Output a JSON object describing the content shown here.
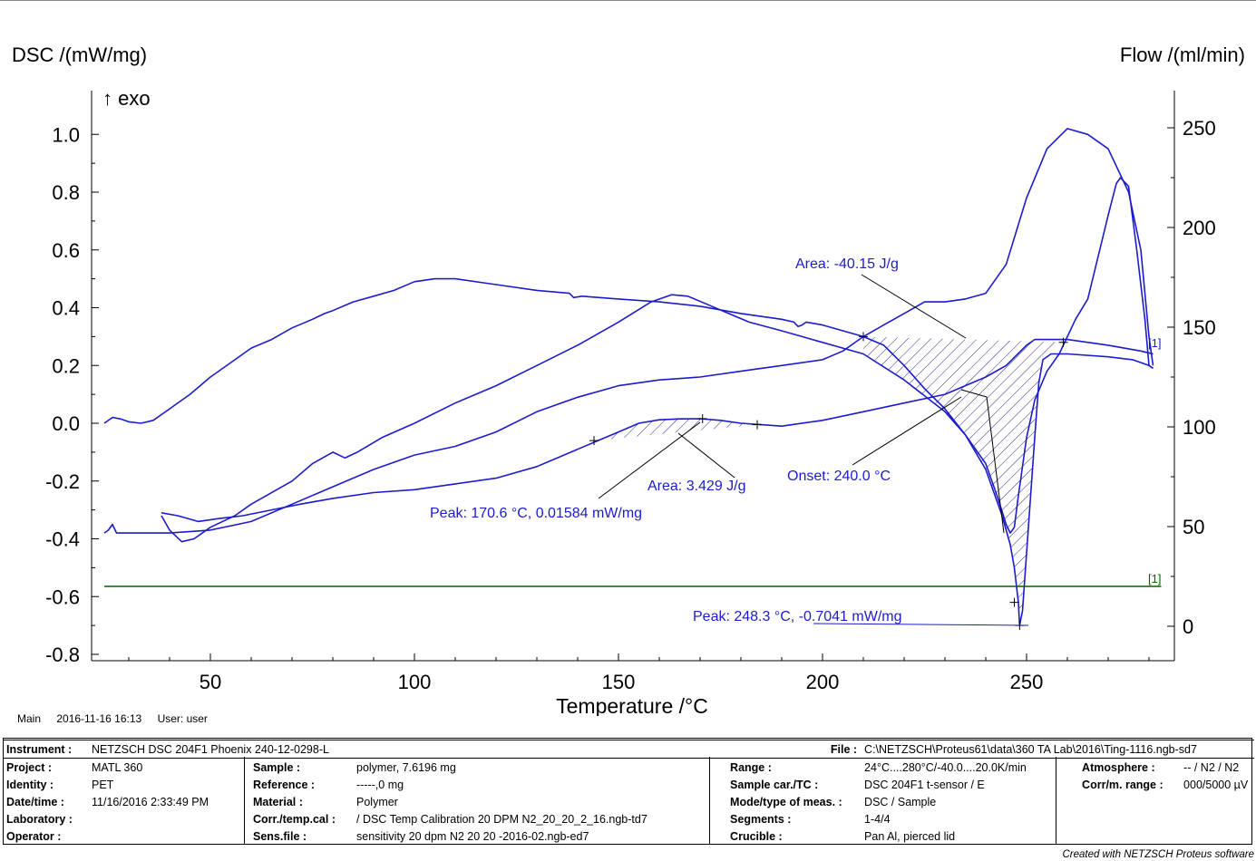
{
  "chart_data": {
    "type": "line",
    "y_left_label": "DSC /(mW/mg)",
    "y_right_label": "Flow /(ml/min)",
    "exo_label": "↑ exo",
    "x_label": "Temperature /°C",
    "x_range": [
      24,
      283
    ],
    "y_left_range": [
      -0.8,
      1.1
    ],
    "y_right_range": [
      0,
      260
    ],
    "x_ticks": [
      "50",
      "100",
      "150",
      "200",
      "250"
    ],
    "y_left_ticks": [
      "1.0",
      "0.8",
      "0.6",
      "0.4",
      "0.2",
      "0.0",
      "-0.2",
      "-0.4",
      "-0.6",
      "-0.8"
    ],
    "y_right_ticks": [
      "250",
      "200",
      "150",
      "100",
      "50",
      "0"
    ],
    "series": [
      {
        "color": "#1c1ccc",
        "points": [
          [
            24,
            0.0
          ],
          [
            26,
            0.02
          ],
          [
            28,
            0.015
          ],
          [
            30,
            0.005
          ],
          [
            33,
            0.0
          ],
          [
            36,
            0.01
          ],
          [
            40,
            0.05
          ],
          [
            45,
            0.1
          ],
          [
            50,
            0.16
          ],
          [
            55,
            0.21
          ],
          [
            60,
            0.26
          ],
          [
            65,
            0.29
          ],
          [
            70,
            0.33
          ],
          [
            75,
            0.36
          ],
          [
            78,
            0.38
          ],
          [
            80,
            0.39
          ],
          [
            85,
            0.42
          ],
          [
            90,
            0.44
          ],
          [
            95,
            0.46
          ],
          [
            100,
            0.49
          ],
          [
            105,
            0.5
          ],
          [
            110,
            0.5
          ],
          [
            120,
            0.48
          ],
          [
            130,
            0.46
          ],
          [
            138,
            0.45
          ],
          [
            139,
            0.435
          ],
          [
            141,
            0.44
          ],
          [
            150,
            0.43
          ],
          [
            160,
            0.42
          ],
          [
            170,
            0.405
          ],
          [
            180,
            0.38
          ],
          [
            190,
            0.36
          ],
          [
            193,
            0.35
          ],
          [
            194,
            0.335
          ],
          [
            195,
            0.34
          ],
          [
            196,
            0.35
          ],
          [
            200,
            0.34
          ],
          [
            205,
            0.32
          ],
          [
            210,
            0.3
          ],
          [
            215,
            0.27
          ],
          [
            220,
            0.2
          ],
          [
            225,
            0.12
          ],
          [
            230,
            0.05
          ],
          [
            235,
            -0.04
          ],
          [
            240,
            -0.14
          ],
          [
            243,
            -0.26
          ],
          [
            245,
            -0.35
          ],
          [
            246,
            -0.38
          ],
          [
            247,
            -0.36
          ],
          [
            248,
            -0.25
          ],
          [
            250,
            -0.05
          ],
          [
            252,
            0.08
          ],
          [
            255,
            0.18
          ],
          [
            258,
            0.24
          ],
          [
            262,
            0.36
          ],
          [
            265,
            0.43
          ],
          [
            270,
            0.72
          ],
          [
            272,
            0.83
          ],
          [
            273,
            0.85
          ],
          [
            275,
            0.82
          ],
          [
            277,
            0.6
          ],
          [
            279,
            0.36
          ],
          [
            280,
            0.2
          ],
          [
            281,
            0.19
          ]
        ]
      },
      {
        "color": "#1c1ccc",
        "points": [
          [
            38,
            -0.32
          ],
          [
            40,
            -0.37
          ],
          [
            43,
            -0.41
          ],
          [
            46,
            -0.4
          ],
          [
            50,
            -0.36
          ],
          [
            56,
            -0.32
          ],
          [
            60,
            -0.28
          ],
          [
            70,
            -0.2
          ],
          [
            75,
            -0.14
          ],
          [
            80,
            -0.1
          ],
          [
            83,
            -0.12
          ],
          [
            86,
            -0.1
          ],
          [
            92,
            -0.05
          ],
          [
            100,
            0.0
          ],
          [
            110,
            0.07
          ],
          [
            120,
            0.13
          ],
          [
            130,
            0.2
          ],
          [
            140,
            0.27
          ],
          [
            150,
            0.35
          ],
          [
            158,
            0.42
          ],
          [
            163,
            0.445
          ],
          [
            167,
            0.44
          ],
          [
            172,
            0.41
          ],
          [
            177,
            0.38
          ],
          [
            182,
            0.35
          ],
          [
            190,
            0.32
          ],
          [
            200,
            0.28
          ],
          [
            210,
            0.24
          ],
          [
            220,
            0.15
          ],
          [
            230,
            0.04
          ],
          [
            235,
            -0.04
          ],
          [
            240,
            -0.16
          ],
          [
            244,
            -0.32
          ],
          [
            246,
            -0.42
          ],
          [
            247,
            -0.5
          ],
          [
            248,
            -0.62
          ],
          [
            248.3,
            -0.7
          ],
          [
            249,
            -0.65
          ],
          [
            250,
            -0.45
          ],
          [
            251,
            -0.25
          ],
          [
            252,
            -0.05
          ],
          [
            253,
            0.14
          ],
          [
            254,
            0.22
          ],
          [
            256,
            0.24
          ],
          [
            260,
            0.24
          ],
          [
            270,
            0.23
          ],
          [
            276,
            0.22
          ],
          [
            280,
            0.2
          ],
          [
            281,
            0.19
          ]
        ]
      },
      {
        "color": "#1c1ccc",
        "points": [
          [
            24,
            -0.38
          ],
          [
            25,
            -0.37
          ],
          [
            26,
            -0.35
          ],
          [
            27,
            -0.38
          ],
          [
            30,
            -0.38
          ],
          [
            40,
            -0.38
          ],
          [
            50,
            -0.37
          ],
          [
            60,
            -0.34
          ],
          [
            70,
            -0.28
          ],
          [
            80,
            -0.22
          ],
          [
            90,
            -0.16
          ],
          [
            100,
            -0.11
          ],
          [
            110,
            -0.08
          ],
          [
            120,
            -0.03
          ],
          [
            130,
            0.04
          ],
          [
            140,
            0.09
          ],
          [
            150,
            0.13
          ],
          [
            160,
            0.15
          ],
          [
            170,
            0.16
          ],
          [
            180,
            0.18
          ],
          [
            190,
            0.2
          ],
          [
            200,
            0.22
          ],
          [
            205,
            0.25
          ],
          [
            210,
            0.3
          ],
          [
            215,
            0.34
          ],
          [
            220,
            0.38
          ],
          [
            225,
            0.42
          ],
          [
            230,
            0.42
          ],
          [
            235,
            0.43
          ],
          [
            240,
            0.45
          ],
          [
            245,
            0.55
          ],
          [
            250,
            0.78
          ],
          [
            255,
            0.95
          ],
          [
            260,
            1.02
          ],
          [
            265,
            1.0
          ],
          [
            270,
            0.95
          ],
          [
            275,
            0.8
          ],
          [
            278,
            0.6
          ],
          [
            280,
            0.3
          ],
          [
            281,
            0.2
          ]
        ]
      },
      {
        "color": "#1c1ccc",
        "points": [
          [
            38,
            -0.31
          ],
          [
            42,
            -0.32
          ],
          [
            47,
            -0.34
          ],
          [
            52,
            -0.33
          ],
          [
            58,
            -0.32
          ],
          [
            65,
            -0.3
          ],
          [
            72,
            -0.28
          ],
          [
            80,
            -0.26
          ],
          [
            90,
            -0.24
          ],
          [
            100,
            -0.23
          ],
          [
            110,
            -0.21
          ],
          [
            120,
            -0.19
          ],
          [
            130,
            -0.15
          ],
          [
            140,
            -0.09
          ],
          [
            145,
            -0.06
          ],
          [
            150,
            -0.03
          ],
          [
            155,
            0.0
          ],
          [
            160,
            0.012
          ],
          [
            165,
            0.015
          ],
          [
            170,
            0.0158
          ],
          [
            175,
            0.01
          ],
          [
            180,
            0.0
          ],
          [
            185,
            -0.005
          ],
          [
            190,
            -0.01
          ],
          [
            200,
            0.01
          ],
          [
            210,
            0.04
          ],
          [
            220,
            0.07
          ],
          [
            230,
            0.1
          ],
          [
            240,
            0.16
          ],
          [
            245,
            0.2
          ],
          [
            250,
            0.27
          ],
          [
            252,
            0.29
          ],
          [
            260,
            0.29
          ],
          [
            270,
            0.27
          ],
          [
            278,
            0.25
          ],
          [
            281,
            0.24
          ]
        ]
      },
      {
        "color": "#006400",
        "axis": "right",
        "points": [
          [
            24,
            20
          ],
          [
            283,
            20
          ]
        ]
      }
    ],
    "annotations": {
      "area1": "Area: -40.15 J/g",
      "area2": "Area: 3.429 J/g",
      "onset": "Onset: 240.0 °C",
      "peak1": "Peak: 170.6 °C, 0.01584 mW/mg",
      "peak2": "Peak: 248.3 °C, -0.7041 mW/mg",
      "seg_marker_blue": "[1]",
      "seg_marker_green": "[1]"
    }
  },
  "footer": {
    "main_label": "Main",
    "datetime": "2016-11-16 16:13",
    "user": "User: user"
  },
  "info": {
    "instrument_k": "Instrument :",
    "instrument_v": "NETZSCH DSC 204F1 Phoenix 240-12-0298-L",
    "file_k": "File :",
    "file_v": "C:\\NETZSCH\\Proteus61\\data\\360 TA Lab\\2016\\Ting-1116.ngb-sd7",
    "project_k": "Project :",
    "project_v": "MATL 360",
    "identity_k": "Identity :",
    "identity_v": "PET",
    "datetime_k": "Date/time :",
    "datetime_v": "11/16/2016 2:33:49 PM",
    "laboratory_k": "Laboratory :",
    "laboratory_v": "",
    "operator_k": "Operator :",
    "operator_v": "",
    "sample_k": "Sample :",
    "sample_v": "polymer, 7.6196 mg",
    "reference_k": "Reference :",
    "reference_v": "-----,0 mg",
    "material_k": "Material :",
    "material_v": "Polymer",
    "corr_k": "Corr./temp.cal :",
    "corr_v": " / DSC Temp Calibration 20 DPM N2_20_20_2_16.ngb-td7",
    "sens_k": "Sens.file :",
    "sens_v": "sensitivity 20 dpm N2 20 20 -2016-02.ngb-ed7",
    "range_k": "Range :",
    "range_v": "24°C....280°C/-40.0....20.0K/min",
    "samplecar_k": "Sample car./TC :",
    "samplecar_v": "DSC 204F1 t-sensor / E",
    "mode_k": "Mode/type of meas. :",
    "mode_v": "DSC / Sample",
    "segments_k": "Segments :",
    "segments_v": "1-4/4",
    "crucible_k": "Crucible :",
    "crucible_v": "Pan Al, pierced lid",
    "atmosphere_k": "Atmosphere :",
    "atmosphere_v": "-- / N2 / N2",
    "corrm_k": "Corr/m. range :",
    "corrm_v": "000/5000 µV"
  },
  "credit": "Created with NETZSCH Proteus software"
}
